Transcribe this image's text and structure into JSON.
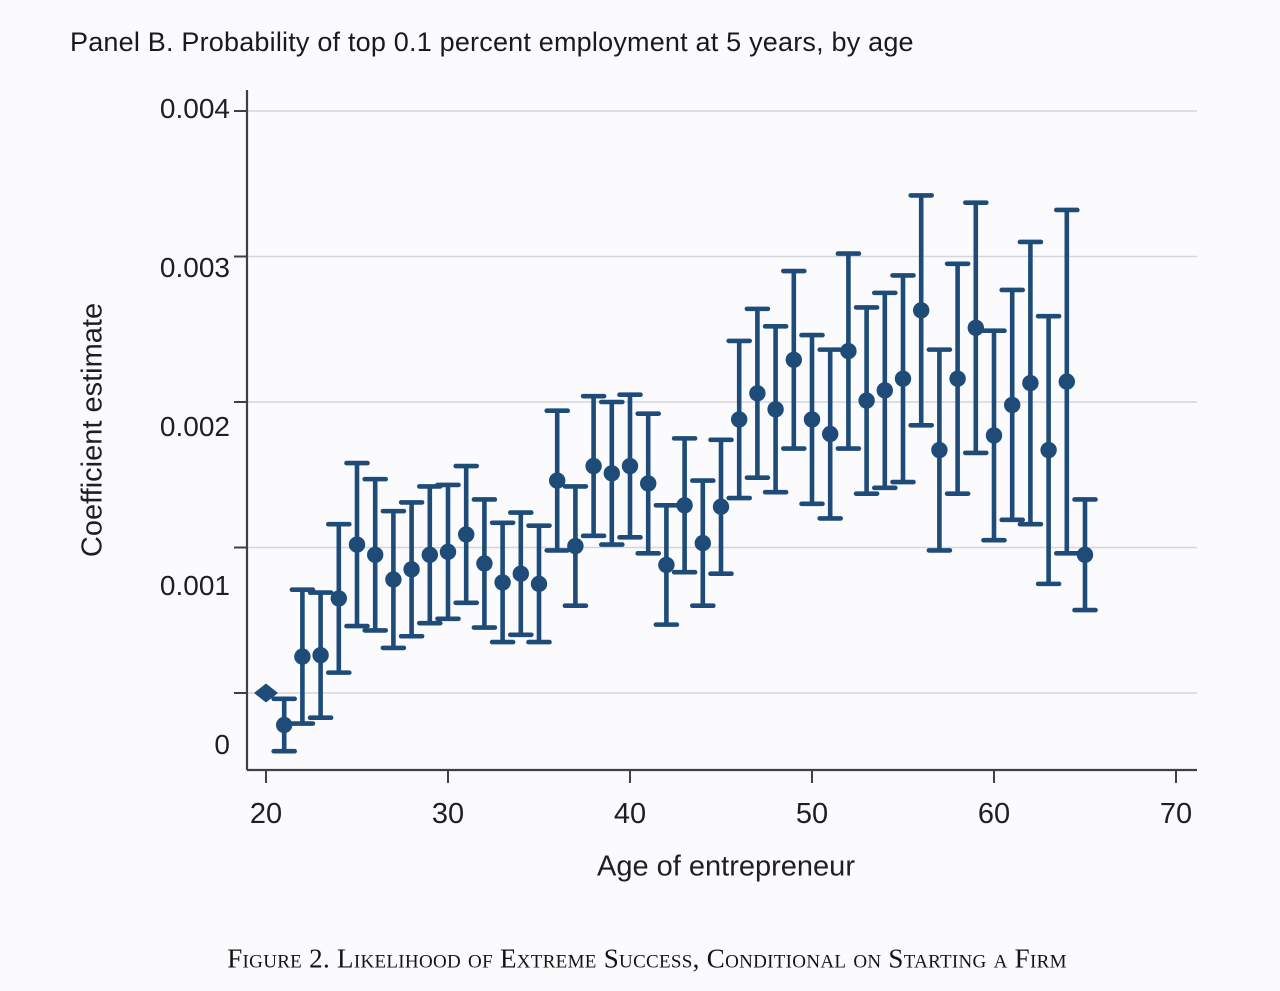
{
  "panel_title": "Panel B. Probability of top 0.1 percent employment at 5 years, by age",
  "caption": "Figure 2. Likelihood of Extreme Success, Conditional on Starting a Firm",
  "colors": {
    "marker": "#1e4b77",
    "gridline": "#d6d6da",
    "axis": "#404042",
    "text": "#1f1f21",
    "background": "#fbfbfd"
  },
  "chart_data": {
    "type": "scatter",
    "subtype": "coefficient-plot-with-95ci-error-bars",
    "title": "Panel B. Probability of top 0.1 percent employment at 5 years, by age",
    "xlabel": "Age of entrepreneur",
    "ylabel": "Coefficient estimate",
    "xlim": [
      19,
      71
    ],
    "ylim": [
      -0.00053,
      0.00414
    ],
    "grid": "horizontal-only",
    "legend": "none",
    "x_ticks": [
      20,
      30,
      40,
      50,
      60,
      70
    ],
    "y_ticks": [
      0,
      0.001,
      0.002,
      0.003,
      0.004
    ],
    "y_tick_labels": [
      "0",
      "0.001",
      "0.002",
      "0.003",
      "0.004"
    ],
    "points": [
      {
        "age": 20,
        "estimate": 0.0,
        "ci_low": null,
        "ci_high": null,
        "marker": "diamond"
      },
      {
        "age": 21,
        "estimate": -0.00022,
        "ci_low": -0.0004,
        "ci_high": -4e-05
      },
      {
        "age": 22,
        "estimate": 0.00025,
        "ci_low": -0.00021,
        "ci_high": 0.00071
      },
      {
        "age": 23,
        "estimate": 0.00026,
        "ci_low": -0.00017,
        "ci_high": 0.00069
      },
      {
        "age": 24,
        "estimate": 0.00065,
        "ci_low": 0.00014,
        "ci_high": 0.00116
      },
      {
        "age": 25,
        "estimate": 0.00102,
        "ci_low": 0.00046,
        "ci_high": 0.00158
      },
      {
        "age": 26,
        "estimate": 0.00095,
        "ci_low": 0.00043,
        "ci_high": 0.00147
      },
      {
        "age": 27,
        "estimate": 0.00078,
        "ci_low": 0.00031,
        "ci_high": 0.00125
      },
      {
        "age": 28,
        "estimate": 0.00085,
        "ci_low": 0.00039,
        "ci_high": 0.00131
      },
      {
        "age": 29,
        "estimate": 0.00095,
        "ci_low": 0.00048,
        "ci_high": 0.00142
      },
      {
        "age": 30,
        "estimate": 0.00097,
        "ci_low": 0.00051,
        "ci_high": 0.00143
      },
      {
        "age": 31,
        "estimate": 0.00109,
        "ci_low": 0.00062,
        "ci_high": 0.00156
      },
      {
        "age": 32,
        "estimate": 0.00089,
        "ci_low": 0.00045,
        "ci_high": 0.00133
      },
      {
        "age": 33,
        "estimate": 0.00076,
        "ci_low": 0.00035,
        "ci_high": 0.00117
      },
      {
        "age": 34,
        "estimate": 0.00082,
        "ci_low": 0.0004,
        "ci_high": 0.00124
      },
      {
        "age": 35,
        "estimate": 0.00075,
        "ci_low": 0.00035,
        "ci_high": 0.00115
      },
      {
        "age": 36,
        "estimate": 0.00146,
        "ci_low": 0.00098,
        "ci_high": 0.00194
      },
      {
        "age": 37,
        "estimate": 0.00101,
        "ci_low": 0.0006,
        "ci_high": 0.00142
      },
      {
        "age": 38,
        "estimate": 0.00156,
        "ci_low": 0.00108,
        "ci_high": 0.00204
      },
      {
        "age": 39,
        "estimate": 0.00151,
        "ci_low": 0.00102,
        "ci_high": 0.002
      },
      {
        "age": 40,
        "estimate": 0.00156,
        "ci_low": 0.00107,
        "ci_high": 0.00205
      },
      {
        "age": 41,
        "estimate": 0.00144,
        "ci_low": 0.00096,
        "ci_high": 0.00192
      },
      {
        "age": 42,
        "estimate": 0.00088,
        "ci_low": 0.00047,
        "ci_high": 0.00129
      },
      {
        "age": 43,
        "estimate": 0.00129,
        "ci_low": 0.00083,
        "ci_high": 0.00175
      },
      {
        "age": 44,
        "estimate": 0.00103,
        "ci_low": 0.0006,
        "ci_high": 0.00146
      },
      {
        "age": 45,
        "estimate": 0.00128,
        "ci_low": 0.00082,
        "ci_high": 0.00174
      },
      {
        "age": 46,
        "estimate": 0.00188,
        "ci_low": 0.00134,
        "ci_high": 0.00242
      },
      {
        "age": 47,
        "estimate": 0.00206,
        "ci_low": 0.00148,
        "ci_high": 0.00264
      },
      {
        "age": 48,
        "estimate": 0.00195,
        "ci_low": 0.00138,
        "ci_high": 0.00252
      },
      {
        "age": 49,
        "estimate": 0.00229,
        "ci_low": 0.00168,
        "ci_high": 0.0029
      },
      {
        "age": 50,
        "estimate": 0.00188,
        "ci_low": 0.0013,
        "ci_high": 0.00246
      },
      {
        "age": 51,
        "estimate": 0.00178,
        "ci_low": 0.0012,
        "ci_high": 0.00236
      },
      {
        "age": 52,
        "estimate": 0.00235,
        "ci_low": 0.00168,
        "ci_high": 0.00302
      },
      {
        "age": 53,
        "estimate": 0.00201,
        "ci_low": 0.00137,
        "ci_high": 0.00265
      },
      {
        "age": 54,
        "estimate": 0.00208,
        "ci_low": 0.00141,
        "ci_high": 0.00275
      },
      {
        "age": 55,
        "estimate": 0.00216,
        "ci_low": 0.00145,
        "ci_high": 0.00287
      },
      {
        "age": 56,
        "estimate": 0.00263,
        "ci_low": 0.00184,
        "ci_high": 0.00342
      },
      {
        "age": 57,
        "estimate": 0.00167,
        "ci_low": 0.00098,
        "ci_high": 0.00236
      },
      {
        "age": 58,
        "estimate": 0.00216,
        "ci_low": 0.00137,
        "ci_high": 0.00295
      },
      {
        "age": 59,
        "estimate": 0.00251,
        "ci_low": 0.00165,
        "ci_high": 0.00337
      },
      {
        "age": 60,
        "estimate": 0.00177,
        "ci_low": 0.00105,
        "ci_high": 0.00249
      },
      {
        "age": 61,
        "estimate": 0.00198,
        "ci_low": 0.00119,
        "ci_high": 0.00277
      },
      {
        "age": 62,
        "estimate": 0.00213,
        "ci_low": 0.00116,
        "ci_high": 0.0031
      },
      {
        "age": 63,
        "estimate": 0.00167,
        "ci_low": 0.00075,
        "ci_high": 0.00259
      },
      {
        "age": 64,
        "estimate": 0.00214,
        "ci_low": 0.00096,
        "ci_high": 0.00332
      },
      {
        "age": 65,
        "estimate": 0.00095,
        "ci_low": 0.00057,
        "ci_high": 0.00133
      }
    ]
  }
}
